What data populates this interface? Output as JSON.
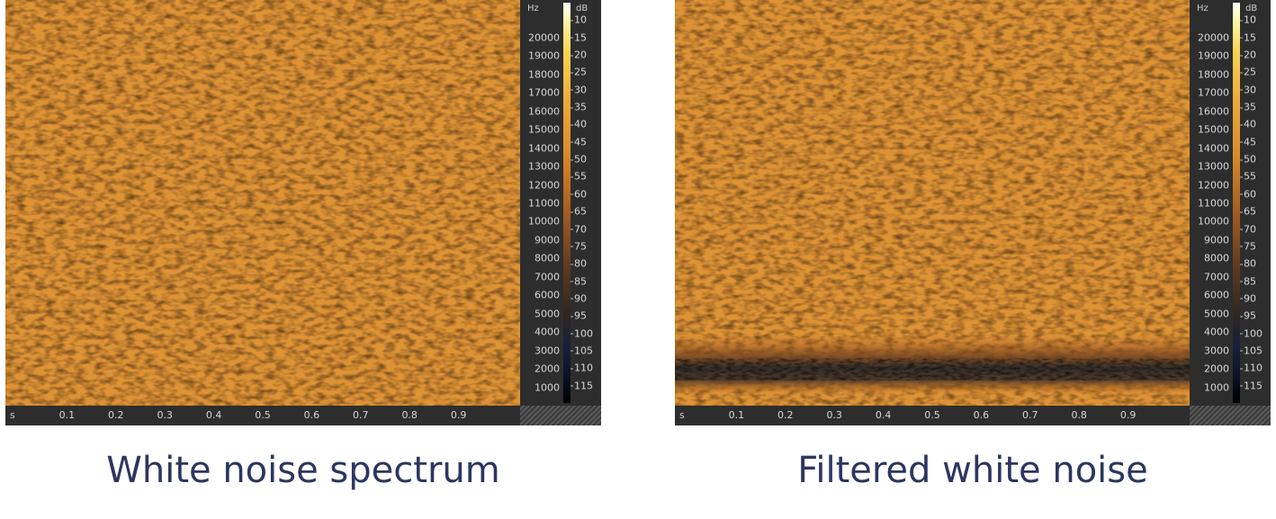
{
  "chart_data": [
    {
      "type": "heatmap",
      "title": "White noise spectrum",
      "x_unit": "s",
      "x_ticks": [
        "0.1",
        "0.2",
        "0.3",
        "0.4",
        "0.5",
        "0.6",
        "0.7",
        "0.8",
        "0.9"
      ],
      "xlim": [
        0,
        1.0
      ],
      "y_unit": "Hz",
      "y_ticks": [
        "20000",
        "19000",
        "18000",
        "17000",
        "16000",
        "15000",
        "14000",
        "13000",
        "12000",
        "11000",
        "10000",
        "9000",
        "8000",
        "7000",
        "6000",
        "5000",
        "4000",
        "3000",
        "2000",
        "1000"
      ],
      "ylim": [
        0,
        22050
      ],
      "colorbar_unit": "dB",
      "colorbar_ticks": [
        "10",
        "15",
        "20",
        "25",
        "30",
        "35",
        "40",
        "45",
        "50",
        "55",
        "60",
        "65",
        "70",
        "75",
        "80",
        "85",
        "90",
        "95",
        "100",
        "105",
        "110",
        "115"
      ],
      "description_values": {
        "level_db_all_frequencies": 32
      },
      "band_attenuation": []
    },
    {
      "type": "heatmap",
      "title": "Filtered white noise",
      "x_unit": "s",
      "x_ticks": [
        "0.1",
        "0.2",
        "0.3",
        "0.4",
        "0.5",
        "0.6",
        "0.7",
        "0.8",
        "0.9"
      ],
      "xlim": [
        0,
        1.0
      ],
      "y_unit": "Hz",
      "y_ticks": [
        "20000",
        "19000",
        "18000",
        "17000",
        "16000",
        "15000",
        "14000",
        "13000",
        "12000",
        "11000",
        "10000",
        "9000",
        "8000",
        "7000",
        "6000",
        "5000",
        "4000",
        "3000",
        "2000",
        "1000"
      ],
      "ylim": [
        0,
        22050
      ],
      "colorbar_unit": "dB",
      "colorbar_ticks": [
        "10",
        "15",
        "20",
        "25",
        "30",
        "35",
        "40",
        "45",
        "50",
        "55",
        "60",
        "65",
        "70",
        "75",
        "80",
        "85",
        "90",
        "95",
        "100",
        "105",
        "110",
        "115"
      ],
      "description_values": {
        "level_db_all_frequencies": 32
      },
      "band_attenuation": [
        {
          "center_hz": 1900,
          "width_hz": 2600,
          "min_level_db": 80
        }
      ]
    }
  ]
}
